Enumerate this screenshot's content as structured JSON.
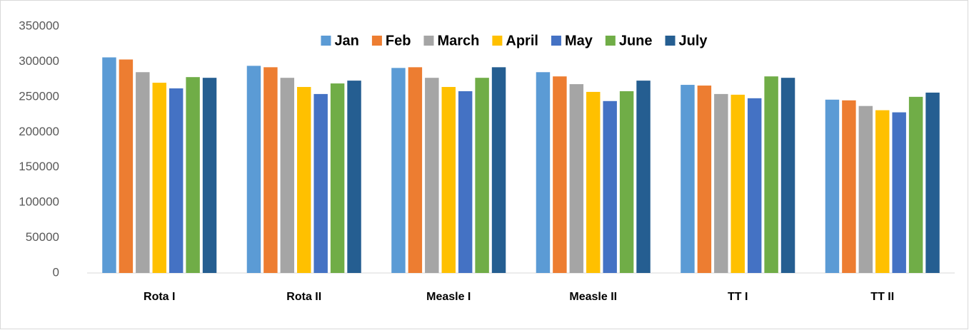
{
  "chart_data": {
    "type": "bar",
    "categories": [
      "Rota I",
      "Rota II",
      "Measle I",
      "Measle II",
      "TT I",
      "TT II"
    ],
    "series": [
      {
        "name": "Jan",
        "color": "#5b9bd5",
        "values": [
          306000,
          294000,
          291000,
          285000,
          267000,
          246000
        ]
      },
      {
        "name": "Feb",
        "color": "#ed7d31",
        "values": [
          303000,
          292000,
          292000,
          279000,
          266000,
          245000
        ]
      },
      {
        "name": "March",
        "color": "#a5a5a5",
        "values": [
          285000,
          277000,
          277000,
          268000,
          254000,
          237000
        ]
      },
      {
        "name": "April",
        "color": "#ffc000",
        "values": [
          270000,
          264000,
          264000,
          257000,
          253000,
          231000
        ]
      },
      {
        "name": "May",
        "color": "#4472c4",
        "values": [
          262000,
          254000,
          258000,
          244000,
          248000,
          228000
        ]
      },
      {
        "name": "June",
        "color": "#70ad47",
        "values": [
          278000,
          269000,
          277000,
          258000,
          279000,
          250000
        ]
      },
      {
        "name": "July",
        "color": "#255e91",
        "values": [
          277000,
          273000,
          292000,
          273000,
          277000,
          256000
        ]
      }
    ],
    "ylim": [
      0,
      350000
    ],
    "yticks": [
      0,
      50000,
      100000,
      150000,
      200000,
      250000,
      300000,
      350000
    ],
    "grid": false,
    "legend": "top"
  }
}
